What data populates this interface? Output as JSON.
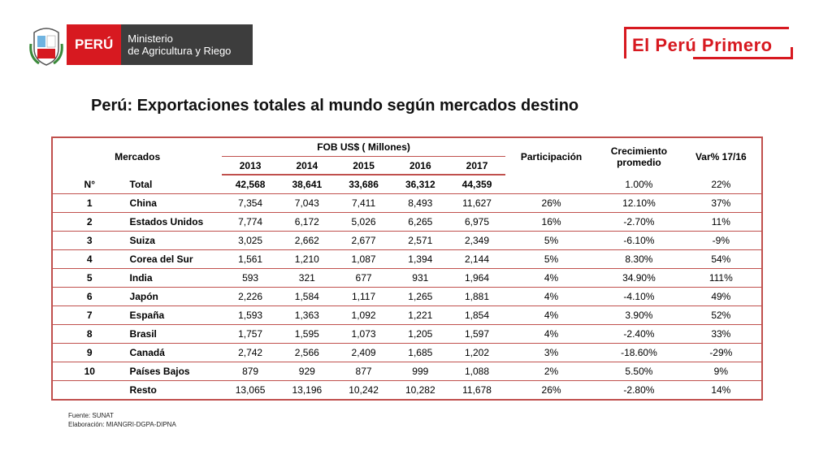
{
  "header": {
    "peru_label": "PERÚ",
    "ministry_line1": "Ministerio",
    "ministry_line2": "de Agricultura y Riego",
    "brand": "El Perú Primero"
  },
  "title": "Perú: Exportaciones totales al mundo según mercados destino",
  "table": {
    "col_mercados": "Mercados",
    "col_fob": "FOB US$ ( Millones)",
    "years": [
      "2013",
      "2014",
      "2015",
      "2016",
      "2017"
    ],
    "col_participacion": "Participación",
    "col_crecimiento": "Crecimiento promedio",
    "col_var": "Var% 17/16",
    "rows": [
      {
        "n": "N°",
        "market": "Total",
        "v": [
          "42,568",
          "38,641",
          "33,686",
          "36,312",
          "44,359"
        ],
        "part": "",
        "crec": "1.00%",
        "var": "22%"
      },
      {
        "n": "1",
        "market": "China",
        "v": [
          "7,354",
          "7,043",
          "7,411",
          "8,493",
          "11,627"
        ],
        "part": "26%",
        "crec": "12.10%",
        "var": "37%"
      },
      {
        "n": "2",
        "market": "Estados Unidos",
        "v": [
          "7,774",
          "6,172",
          "5,026",
          "6,265",
          "6,975"
        ],
        "part": "16%",
        "crec": "-2.70%",
        "var": "11%"
      },
      {
        "n": "3",
        "market": "Suiza",
        "v": [
          "3,025",
          "2,662",
          "2,677",
          "2,571",
          "2,349"
        ],
        "part": "5%",
        "crec": "-6.10%",
        "var": "-9%"
      },
      {
        "n": "4",
        "market": "Corea del Sur",
        "v": [
          "1,561",
          "1,210",
          "1,087",
          "1,394",
          "2,144"
        ],
        "part": "5%",
        "crec": "8.30%",
        "var": "54%"
      },
      {
        "n": "5",
        "market": "India",
        "v": [
          "593",
          "321",
          "677",
          "931",
          "1,964"
        ],
        "part": "4%",
        "crec": "34.90%",
        "var": "111%"
      },
      {
        "n": "6",
        "market": "Japón",
        "v": [
          "2,226",
          "1,584",
          "1,117",
          "1,265",
          "1,881"
        ],
        "part": "4%",
        "crec": "-4.10%",
        "var": "49%"
      },
      {
        "n": "7",
        "market": "España",
        "v": [
          "1,593",
          "1,363",
          "1,092",
          "1,221",
          "1,854"
        ],
        "part": "4%",
        "crec": "3.90%",
        "var": "52%"
      },
      {
        "n": "8",
        "market": "Brasil",
        "v": [
          "1,757",
          "1,595",
          "1,073",
          "1,205",
          "1,597"
        ],
        "part": "4%",
        "crec": "-2.40%",
        "var": "33%"
      },
      {
        "n": "9",
        "market": "Canadá",
        "v": [
          "2,742",
          "2,566",
          "2,409",
          "1,685",
          "1,202"
        ],
        "part": "3%",
        "crec": "-18.60%",
        "var": "-29%"
      },
      {
        "n": "10",
        "market": "Países Bajos",
        "v": [
          "879",
          "929",
          "877",
          "999",
          "1,088"
        ],
        "part": "2%",
        "crec": "5.50%",
        "var": "9%"
      },
      {
        "n": "",
        "market": "Resto",
        "v": [
          "13,065",
          "13,196",
          "10,242",
          "10,282",
          "11,678"
        ],
        "part": "26%",
        "crec": "-2.80%",
        "var": "14%"
      }
    ]
  },
  "footer": {
    "source": "Fuente: SUNAT",
    "elaboration": "Elaboración: MIANGRI-DGPA-DIPNA"
  },
  "colors": {
    "brand_red": "#d71920",
    "table_border": "#c0504d"
  }
}
